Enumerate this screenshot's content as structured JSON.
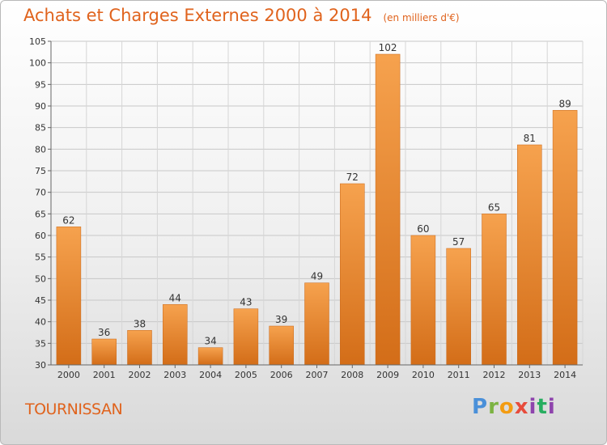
{
  "title": "Achats et Charges Externes 2000 à 2014",
  "unit": "(en milliers d'€)",
  "place": "TOURNISSAN",
  "logo": "Proxiti",
  "chart_data": {
    "type": "bar",
    "categories": [
      "2000",
      "2001",
      "2002",
      "2003",
      "2004",
      "2005",
      "2006",
      "2007",
      "2008",
      "2009",
      "2010",
      "2011",
      "2012",
      "2013",
      "2014"
    ],
    "values": [
      62,
      36,
      38,
      44,
      34,
      43,
      39,
      49,
      72,
      102,
      60,
      57,
      65,
      81,
      89
    ],
    "ylim": [
      30,
      105
    ],
    "yticks": [
      30,
      35,
      40,
      45,
      50,
      55,
      60,
      65,
      70,
      75,
      80,
      85,
      90,
      95,
      100,
      105
    ],
    "grid": true,
    "bar_color": "#f0913a"
  }
}
